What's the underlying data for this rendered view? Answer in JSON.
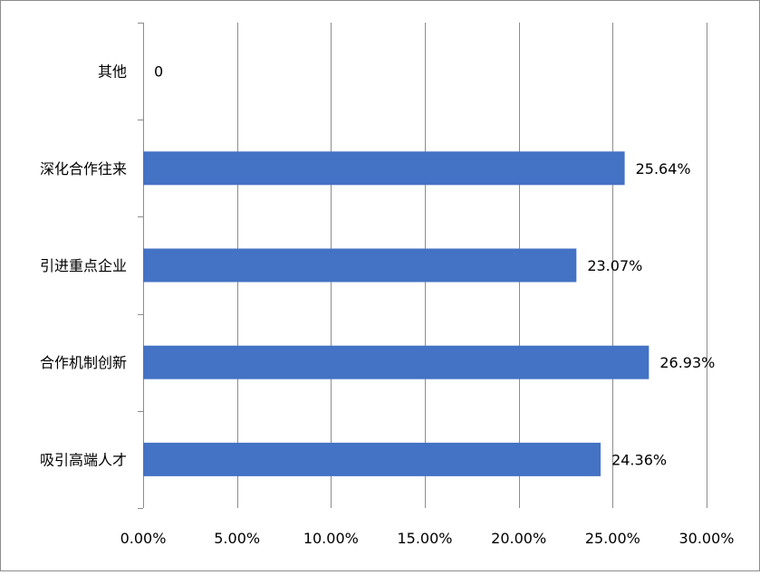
{
  "chart_data": {
    "type": "bar",
    "orientation": "horizontal",
    "title": "",
    "xlabel": "",
    "ylabel": "",
    "categories": [
      "其他",
      "深化合作往来",
      "引进重点企业",
      "合作机制创新",
      "吸引高端人才"
    ],
    "values": [
      0,
      25.64,
      23.07,
      26.93,
      24.36
    ],
    "value_labels": [
      "0",
      "25.64%",
      "23.07%",
      "26.93%",
      "24.36%"
    ],
    "xlim": [
      0,
      30
    ],
    "x_ticks": [
      0,
      5,
      10,
      15,
      20,
      25,
      30
    ],
    "x_tick_labels": [
      "0.00%",
      "5.00%",
      "10.00%",
      "15.00%",
      "20.00%",
      "25.00%",
      "30.00%"
    ],
    "grid": "vertical",
    "legend": "none",
    "bar_color": "#4472C4",
    "grid_color": "#8c8c8c"
  }
}
